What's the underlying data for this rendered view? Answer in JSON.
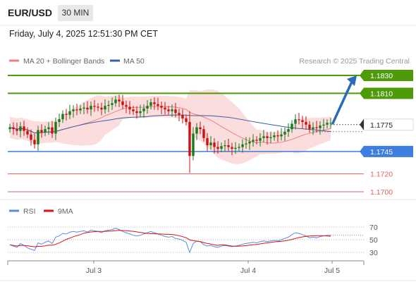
{
  "header": {
    "symbol": "EUR/USD",
    "timeframe": "30 MIN",
    "datetime": "Friday, July 4, 2025 12:51:30 PM CET"
  },
  "legend": {
    "ma20_label": "MA 20 + Bollinger Bands",
    "ma50_label": "MA 50",
    "copyright": "Research © 2025 Trading Central"
  },
  "colors": {
    "resistance": "#4d9a0a",
    "current": "#333333",
    "support": "#3d7ee0",
    "target_red": "#e06060",
    "bollinger_fill": "#fbd9d9",
    "ma20": "#f08080",
    "ma50": "#3a5fa8",
    "arrow": "#2a6ab8",
    "candle_up": "#1a7a1a",
    "candle_down": "#cc1111",
    "rsi": "#5a8ae0",
    "rsi_ma": "#dd1111"
  },
  "chart_data": [
    {
      "type": "candlestick",
      "price_range": [
        1.169,
        1.1835
      ],
      "x_ticks": [
        "Jul 3",
        "Jul 4",
        "Jul 5"
      ],
      "levels": [
        {
          "value": 1.183,
          "label": "1.1830",
          "kind": "resistance"
        },
        {
          "value": 1.181,
          "label": "1.1810",
          "kind": "resistance"
        },
        {
          "value": 1.1775,
          "label": "1.1775",
          "kind": "current"
        },
        {
          "value": 1.1745,
          "label": "1.1745",
          "kind": "support"
        },
        {
          "value": 1.172,
          "label": "1.1720",
          "kind": "target"
        },
        {
          "value": 1.17,
          "label": "1.1700",
          "kind": "target"
        }
      ],
      "close": [
        1.1772,
        1.177,
        1.1768,
        1.1773,
        1.1768,
        1.1764,
        1.1758,
        1.1753,
        1.1769,
        1.1766,
        1.177,
        1.1772,
        1.1765,
        1.1778,
        1.1781,
        1.1787,
        1.1786,
        1.179,
        1.1792,
        1.1791,
        1.1793,
        1.1794,
        1.1792,
        1.1796,
        1.1795,
        1.1794,
        1.1792,
        1.1796,
        1.1797,
        1.1799,
        1.1803,
        1.1801,
        1.1797,
        1.1795,
        1.1792,
        1.179,
        1.1788,
        1.179,
        1.1793,
        1.1796,
        1.18,
        1.1798,
        1.1796,
        1.1794,
        1.1792,
        1.179,
        1.1792,
        1.1788,
        1.1786,
        1.1782,
        1.1778,
        1.174,
        1.1765,
        1.1772,
        1.177,
        1.176,
        1.1752,
        1.1755,
        1.175,
        1.1748,
        1.1751,
        1.1752,
        1.175,
        1.1748,
        1.1749,
        1.175,
        1.1753,
        1.1754,
        1.1756,
        1.1758,
        1.1757,
        1.176,
        1.1762,
        1.176,
        1.1761,
        1.1763,
        1.1762,
        1.1764,
        1.1767,
        1.177,
        1.1776,
        1.1781,
        1.178,
        1.1778,
        1.1775,
        1.177,
        1.1772,
        1.1771,
        1.1774,
        1.1775,
        1.1777,
        1.1777
      ],
      "series": [
        {
          "name": "MA 20 + Bollinger Bands"
        },
        {
          "name": "MA 50"
        }
      ]
    },
    {
      "type": "line",
      "panel": "oscillator",
      "y_ticks": [
        70,
        50,
        30
      ],
      "ylim": [
        15,
        85
      ],
      "series": [
        {
          "name": "RSI",
          "values": [
            42,
            40,
            38,
            44,
            41,
            37,
            35,
            33,
            45,
            43,
            46,
            48,
            44,
            54,
            56,
            60,
            59,
            62,
            63,
            62,
            63,
            64,
            62,
            65,
            64,
            63,
            61,
            64,
            65,
            66,
            68,
            66,
            63,
            61,
            59,
            57,
            56,
            57,
            59,
            61,
            63,
            61,
            59,
            57,
            55,
            54,
            55,
            52,
            51,
            49,
            46,
            30,
            44,
            48,
            47,
            42,
            40,
            41,
            39,
            38,
            40,
            41,
            40,
            39,
            40,
            41,
            43,
            44,
            45,
            46,
            45,
            47,
            48,
            47,
            48,
            49,
            48,
            50,
            52,
            54,
            58,
            61,
            60,
            58,
            56,
            53,
            54,
            53,
            55,
            56,
            57,
            57
          ]
        },
        {
          "name": "9MA"
        }
      ]
    }
  ]
}
